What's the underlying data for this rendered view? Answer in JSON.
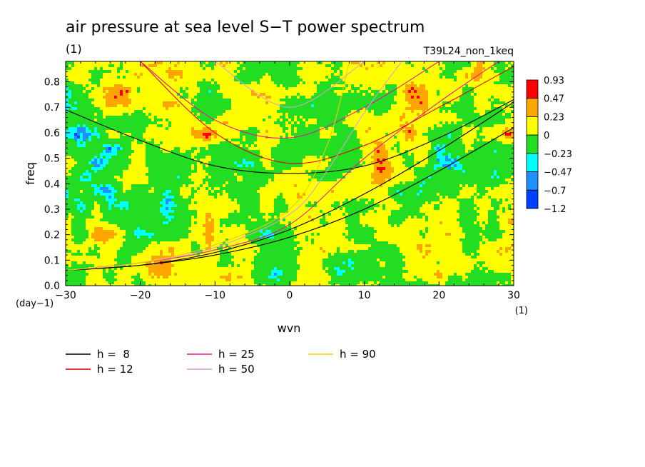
{
  "chart_data": {
    "type": "heatmap",
    "title": "air pressure at sea level S−T power spectrum",
    "subtitle": "(1)",
    "experiment": "T39L24_non_1keq",
    "xlabel": "wvn",
    "xunit": "(1)",
    "ylabel": "freq",
    "yunit": "(day−1)",
    "xlim": [
      -30,
      30
    ],
    "ylim": [
      0,
      0.88
    ],
    "xticks": [
      "−30",
      "−20",
      "−10",
      "0",
      "10",
      "20",
      "30"
    ],
    "yticks": [
      "0.0",
      "0.1",
      "0.2",
      "0.3",
      "0.4",
      "0.5",
      "0.6",
      "0.7",
      "0.8"
    ],
    "colorbar": {
      "labels": [
        "0.93",
        "0.47",
        "0.23",
        "0",
        "−0.23",
        "−0.47",
        "−0.7",
        "−1.2"
      ],
      "colors": [
        "#ff0000",
        "#ffa500",
        "#ffff00",
        "#22dd22",
        "#00ffff",
        "#1e90ff",
        "#0040ff"
      ]
    },
    "legend": [
      {
        "label": "h =  8",
        "color": "#000000"
      },
      {
        "label": "h = 25",
        "color": "#e0189a"
      },
      {
        "label": "h = 90",
        "color": "#f2c80f"
      },
      {
        "label": "h = 12",
        "color": "#e00000"
      },
      {
        "label": "h = 50",
        "color": "#d6a0d6"
      }
    ],
    "dispersion_curves": [
      {
        "h": 8,
        "color": "#000000",
        "kind": "rossby-gravity",
        "points": [
          [
            -30,
            0.06
          ],
          [
            -20,
            0.08
          ],
          [
            -10,
            0.12
          ],
          [
            0,
            0.19
          ],
          [
            10,
            0.3
          ],
          [
            20,
            0.45
          ],
          [
            30,
            0.62
          ]
        ]
      },
      {
        "h": 8,
        "color": "#000000",
        "kind": "kelvin",
        "points": [
          [
            -30,
            0.06
          ],
          [
            -20,
            0.08
          ],
          [
            -10,
            0.13
          ],
          [
            0,
            0.22
          ],
          [
            10,
            0.36
          ],
          [
            20,
            0.53
          ],
          [
            30,
            0.72
          ]
        ]
      },
      {
        "h": 8,
        "color": "#000000",
        "kind": "inertio-gravity",
        "points": [
          [
            -30,
            0.69
          ],
          [
            -20,
            0.57
          ],
          [
            -10,
            0.47
          ],
          [
            0,
            0.44
          ],
          [
            10,
            0.47
          ],
          [
            20,
            0.58
          ],
          [
            30,
            0.73
          ]
        ]
      },
      {
        "h": 12,
        "color": "#e00000",
        "kind": "inertio-gravity",
        "points": [
          [
            -20,
            0.88
          ],
          [
            -10,
            0.6
          ],
          [
            0,
            0.48
          ],
          [
            10,
            0.55
          ],
          [
            20,
            0.7
          ],
          [
            30,
            0.86
          ]
        ]
      },
      {
        "h": 25,
        "color": "#e0189a",
        "kind": "kelvin",
        "points": [
          [
            -30,
            0.06
          ],
          [
            -20,
            0.09
          ],
          [
            -10,
            0.14
          ],
          [
            0,
            0.24
          ],
          [
            10,
            0.5
          ],
          [
            20,
            0.72
          ],
          [
            28,
            0.88
          ]
        ]
      },
      {
        "h": 25,
        "color": "#e0189a",
        "kind": "inertio-gravity",
        "points": [
          [
            -20,
            0.88
          ],
          [
            -10,
            0.65
          ],
          [
            0,
            0.58
          ],
          [
            10,
            0.7
          ],
          [
            20,
            0.88
          ]
        ]
      },
      {
        "h": 50,
        "color": "#d6a0d6",
        "kind": "kelvin",
        "points": [
          [
            -30,
            0.06
          ],
          [
            -20,
            0.09
          ],
          [
            -10,
            0.15
          ],
          [
            0,
            0.28
          ],
          [
            5,
            0.45
          ],
          [
            10,
            0.68
          ],
          [
            15,
            0.88
          ]
        ]
      },
      {
        "h": 50,
        "color": "#d6a0d6",
        "kind": "inertio-gravity",
        "points": [
          [
            -10,
            0.88
          ],
          [
            0,
            0.7
          ],
          [
            10,
            0.88
          ]
        ]
      },
      {
        "h": 90,
        "color": "#f2c80f",
        "kind": "kelvin",
        "points": [
          [
            -30,
            0.06
          ],
          [
            -20,
            0.09
          ],
          [
            -10,
            0.16
          ],
          [
            0,
            0.3
          ],
          [
            5,
            0.55
          ],
          [
            8,
            0.88
          ]
        ]
      }
    ]
  }
}
